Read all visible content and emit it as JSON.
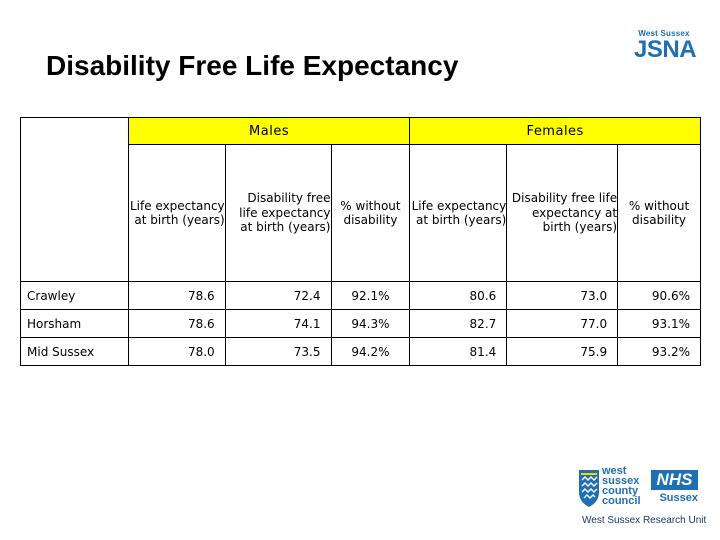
{
  "title": "Disability Free Life Expectancy",
  "logo": {
    "top": "West Sussex",
    "main": "JSNA"
  },
  "table": {
    "groups": {
      "males": "Males",
      "females": "Females"
    },
    "subheaders": {
      "le": "Life expectancy at birth (years)",
      "dfle": "Disability free life expectancy at birth (years)",
      "pct": "% without disability"
    },
    "rows": [
      {
        "area": "Crawley",
        "m_le": "78.6",
        "m_dfle": "72.4",
        "m_pct": "92.1%",
        "f_le": "80.6",
        "f_dfle": "73.0",
        "f_pct": "90.6%"
      },
      {
        "area": "Horsham",
        "m_le": "78.6",
        "m_dfle": "74.1",
        "m_pct": "94.3%",
        "f_le": "82.7",
        "f_dfle": "77.0",
        "f_pct": "93.1%"
      },
      {
        "area": "Mid Sussex",
        "m_le": "78.0",
        "m_dfle": "73.5",
        "m_pct": "94.2%",
        "f_le": "81.4",
        "f_dfle": "75.9",
        "f_pct": "93.2%"
      }
    ]
  },
  "footer": {
    "council": [
      "west",
      "sussex",
      "county",
      "council"
    ],
    "nhs": "NHS",
    "nhs_region": "Sussex",
    "unit": "West Sussex Research Unit"
  },
  "colors": {
    "header_fill": "#ffff00",
    "brand_blue": "#1f6fb3"
  }
}
